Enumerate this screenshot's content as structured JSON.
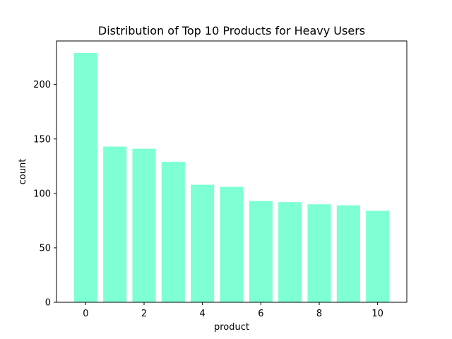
{
  "chart_data": {
    "type": "bar",
    "title": "Distribution of Top 10 Products for Heavy Users",
    "xlabel": "product",
    "ylabel": "count",
    "categories": [
      0,
      1,
      2,
      3,
      4,
      5,
      6,
      7,
      8,
      9,
      10
    ],
    "values": [
      229,
      143,
      141,
      129,
      108,
      106,
      93,
      92,
      90,
      89,
      84
    ],
    "xlim": [
      -1,
      11
    ],
    "ylim": [
      0,
      240
    ],
    "xticks": [
      0,
      2,
      4,
      6,
      8,
      10
    ],
    "yticks": [
      0,
      50,
      100,
      150,
      200
    ],
    "bar_color": "#7fffd4",
    "grid": false,
    "legend": "none"
  }
}
